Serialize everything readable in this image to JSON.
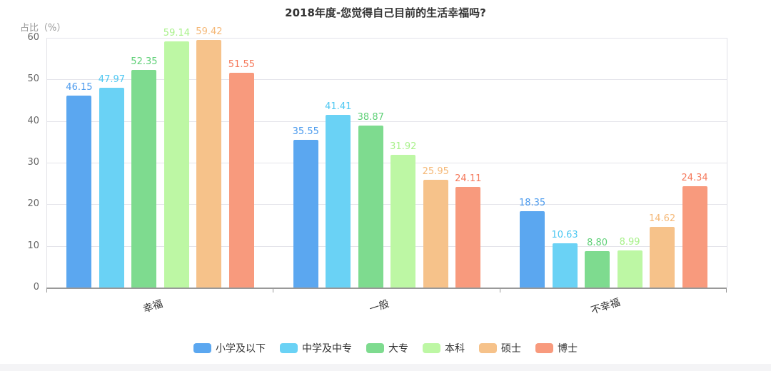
{
  "chart_data": {
    "type": "bar",
    "title": "2018年度-您觉得自己目前的生活幸福吗?",
    "y_axis_name": "占比（%）",
    "categories": [
      "幸福",
      "一般",
      "不幸福"
    ],
    "series": [
      {
        "name": "小学及以下",
        "color": "#5BA7F0",
        "label_color": "#4C9BEE",
        "values": [
          46.15,
          35.55,
          18.35
        ]
      },
      {
        "name": "中学及中专",
        "color": "#6AD2F5",
        "label_color": "#4FC8F2",
        "values": [
          47.97,
          41.41,
          10.63
        ]
      },
      {
        "name": "大专",
        "color": "#7EDB8F",
        "label_color": "#5FD077",
        "values": [
          52.35,
          38.87,
          8.8
        ]
      },
      {
        "name": "本科",
        "color": "#BDF7A4",
        "label_color": "#A9F18B",
        "values": [
          59.14,
          31.92,
          8.99
        ]
      },
      {
        "name": "硕士",
        "color": "#F6C28A",
        "label_color": "#F5B877",
        "values": [
          59.42,
          25.95,
          14.62
        ]
      },
      {
        "name": "博士",
        "color": "#F89A7D",
        "label_color": "#F5795B",
        "values": [
          51.55,
          24.11,
          24.34
        ]
      }
    ],
    "y_ticks": [
      0,
      10,
      20,
      30,
      40,
      50,
      60
    ],
    "ylim": [
      0,
      60
    ],
    "grid": true,
    "legend_position": "bottom",
    "value_decimals": 2
  },
  "style_colors": {
    "grid_line": "#e4e4ea",
    "axis_line": "#999999",
    "y_tick_text": "#666666",
    "axis_name_text": "#999999",
    "category_text": "#333333",
    "title_text": "#333333"
  }
}
